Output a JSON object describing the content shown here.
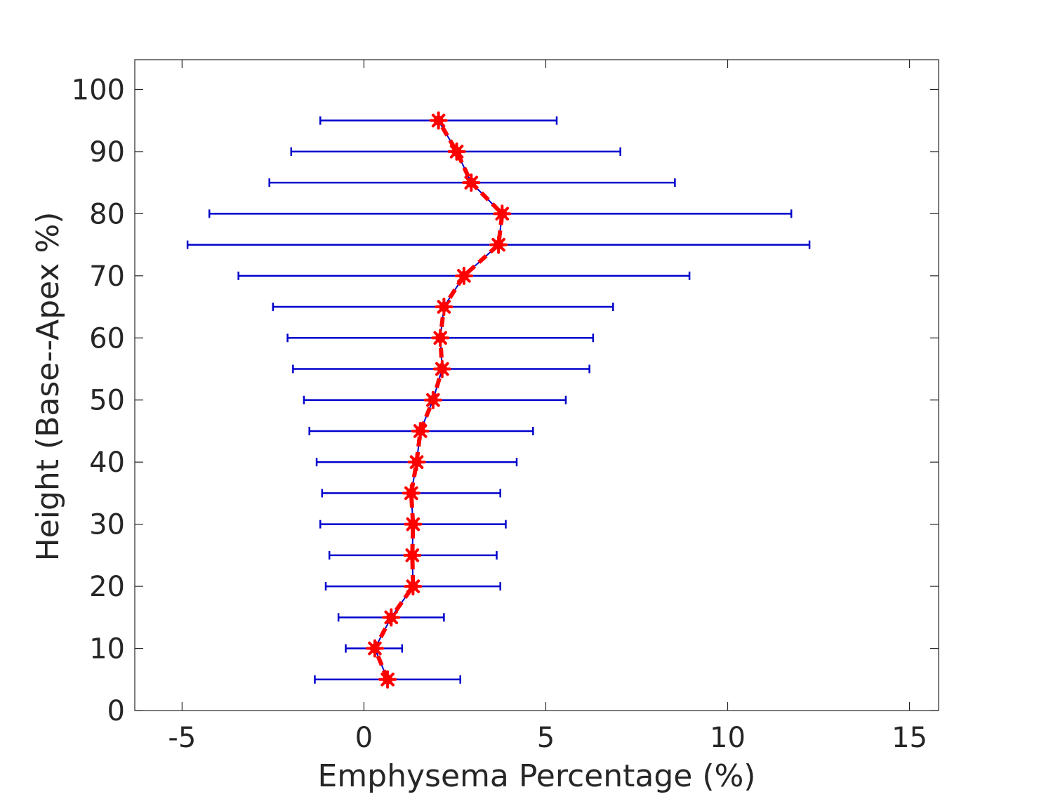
{
  "chart_data": {
    "type": "scatter",
    "title": "",
    "xlabel": "Emphysema Percentage (%)",
    "ylabel": "Height (Base--Apex %)",
    "xlim": [
      -6.3,
      15.8
    ],
    "ylim": [
      0,
      104.8
    ],
    "xticks": [
      -5,
      0,
      5,
      10,
      15
    ],
    "yticks": [
      0,
      10,
      20,
      30,
      40,
      50,
      60,
      70,
      80,
      90,
      100
    ],
    "grid": false,
    "legend": "none",
    "colors": {
      "errorbar": "#0000cc",
      "mean_line": "#ff0000",
      "marker": "#ff0000",
      "axes": "#262626"
    },
    "series": [
      {
        "y": [
          5,
          10,
          15,
          20,
          25,
          30,
          35,
          40,
          45,
          50,
          55,
          60,
          65,
          70,
          75,
          80,
          85,
          90,
          95
        ],
        "x": [
          0.65,
          0.3,
          0.75,
          1.35,
          1.33,
          1.35,
          1.3,
          1.45,
          1.55,
          1.9,
          2.15,
          2.1,
          2.2,
          2.75,
          3.7,
          3.8,
          2.95,
          2.55,
          2.05
        ],
        "lower": [
          -1.35,
          -0.5,
          -0.7,
          -1.05,
          -0.95,
          -1.2,
          -1.15,
          -1.3,
          -1.5,
          -1.65,
          -1.95,
          -2.1,
          -2.5,
          -3.45,
          -4.85,
          -4.25,
          -2.6,
          -2.0,
          -1.2
        ],
        "upper": [
          2.65,
          1.05,
          2.2,
          3.75,
          3.65,
          3.9,
          3.75,
          4.2,
          4.65,
          5.55,
          6.2,
          6.3,
          6.85,
          8.95,
          12.25,
          11.75,
          8.55,
          7.05,
          5.3
        ]
      }
    ]
  }
}
